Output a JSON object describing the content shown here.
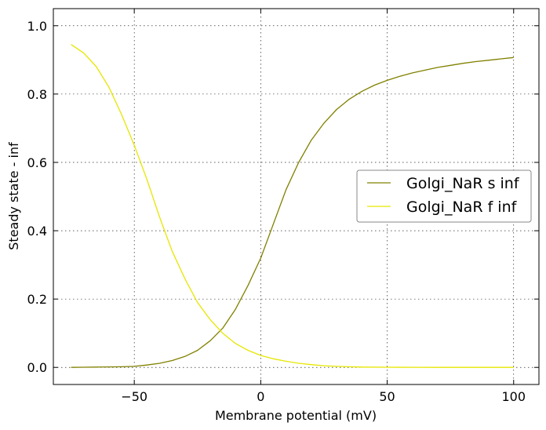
{
  "chart_data": {
    "type": "line",
    "xlabel": "Membrane potential (mV)",
    "ylabel": "Steady state - inf",
    "xlim": [
      -82,
      110
    ],
    "ylim": [
      -0.05,
      1.05
    ],
    "xticks": [
      -50,
      0,
      50,
      100
    ],
    "xtick_labels": [
      "−50",
      "0",
      "50",
      "100"
    ],
    "yticks": [
      0.0,
      0.2,
      0.4,
      0.6,
      0.8,
      1.0
    ],
    "ytick_labels": [
      "0.0",
      "0.2",
      "0.4",
      "0.6",
      "0.8",
      "1.0"
    ],
    "grid": true,
    "legend_position": "center-right",
    "series": [
      {
        "name": "Golgi_NaR s inf",
        "color": "#808000",
        "x": [
          -75,
          -70,
          -65,
          -60,
          -55,
          -50,
          -45,
          -40,
          -35,
          -30,
          -25,
          -20,
          -15,
          -10,
          -5,
          0,
          5,
          10,
          15,
          20,
          25,
          30,
          35,
          40,
          45,
          50,
          55,
          60,
          65,
          70,
          75,
          80,
          85,
          90,
          95,
          100
        ],
        "y": [
          0.0,
          0.0005,
          0.001,
          0.0015,
          0.002,
          0.003,
          0.007,
          0.012,
          0.02,
          0.032,
          0.05,
          0.078,
          0.115,
          0.17,
          0.24,
          0.32,
          0.42,
          0.52,
          0.6,
          0.665,
          0.715,
          0.755,
          0.785,
          0.808,
          0.826,
          0.84,
          0.852,
          0.862,
          0.87,
          0.878,
          0.884,
          0.89,
          0.895,
          0.899,
          0.903,
          0.907
        ]
      },
      {
        "name": "Golgi_NaR f inf",
        "color": "#e6e600",
        "x": [
          -75,
          -70,
          -65,
          -60,
          -55,
          -50,
          -45,
          -40,
          -35,
          -30,
          -25,
          -20,
          -15,
          -10,
          -5,
          0,
          5,
          10,
          15,
          20,
          25,
          30,
          35,
          40,
          50,
          60,
          70,
          80,
          90,
          100
        ],
        "y": [
          0.945,
          0.92,
          0.88,
          0.82,
          0.74,
          0.65,
          0.55,
          0.44,
          0.34,
          0.26,
          0.19,
          0.14,
          0.1,
          0.07,
          0.05,
          0.035,
          0.025,
          0.018,
          0.012,
          0.008,
          0.005,
          0.003,
          0.002,
          0.001,
          0.0005,
          0.0003,
          0.0001,
          0.0,
          0.0,
          0.0
        ]
      }
    ]
  }
}
